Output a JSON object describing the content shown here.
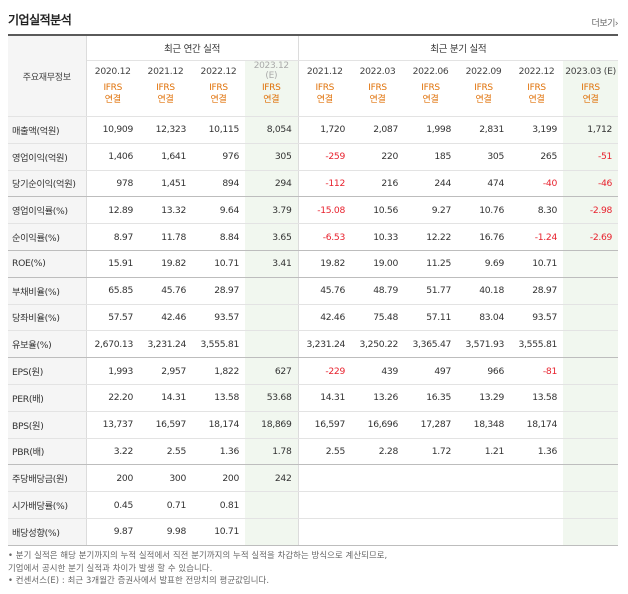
{
  "title": "기업실적분석",
  "more_link": "더보기",
  "row_header": "주요재무정보",
  "groups": {
    "annual": "최근 연간 실적",
    "quarterly": "최근 분기 실적"
  },
  "columns": [
    {
      "period": "2020.12",
      "std": "IFRS",
      "basis": "연결"
    },
    {
      "period": "2021.12",
      "std": "IFRS",
      "basis": "연결"
    },
    {
      "period": "2022.12",
      "std": "IFRS",
      "basis": "연결"
    },
    {
      "period": "2023.12",
      "est": "(E)",
      "std": "IFRS",
      "basis": "연결"
    },
    {
      "period": "2021.12",
      "std": "IFRS",
      "basis": "연결"
    },
    {
      "period": "2022.03",
      "std": "IFRS",
      "basis": "연결"
    },
    {
      "period": "2022.06",
      "std": "IFRS",
      "basis": "연결"
    },
    {
      "period": "2022.09",
      "std": "IFRS",
      "basis": "연결"
    },
    {
      "period": "2022.12",
      "std": "IFRS",
      "basis": "연결"
    },
    {
      "period": "2023.03 (E)",
      "std": "IFRS",
      "basis": "연결"
    }
  ],
  "rows": [
    {
      "label": "매출액(억원)",
      "values": [
        "10,909",
        "12,323",
        "10,115",
        "8,054",
        "1,720",
        "2,087",
        "1,998",
        "2,831",
        "3,199",
        "1,712"
      ]
    },
    {
      "label": "영업이익(억원)",
      "values": [
        "1,406",
        "1,641",
        "976",
        "305",
        "-259",
        "220",
        "185",
        "305",
        "265",
        "-51"
      ]
    },
    {
      "label": "당기순이익(억원)",
      "values": [
        "978",
        "1,451",
        "894",
        "294",
        "-112",
        "216",
        "244",
        "474",
        "-40",
        "-46"
      ]
    },
    {
      "label": "영업이익률(%)",
      "values": [
        "12.89",
        "13.32",
        "9.64",
        "3.79",
        "-15.08",
        "10.56",
        "9.27",
        "10.76",
        "8.30",
        "-2.98"
      ]
    },
    {
      "label": "순이익률(%)",
      "values": [
        "8.97",
        "11.78",
        "8.84",
        "3.65",
        "-6.53",
        "10.33",
        "12.22",
        "16.76",
        "-1.24",
        "-2.69"
      ]
    },
    {
      "label": "ROE(%)",
      "values": [
        "15.91",
        "19.82",
        "10.71",
        "3.41",
        "19.82",
        "19.00",
        "11.25",
        "9.69",
        "10.71",
        ""
      ]
    },
    {
      "label": "부채비율(%)",
      "values": [
        "65.85",
        "45.76",
        "28.97",
        "",
        "45.76",
        "48.79",
        "51.77",
        "40.18",
        "28.97",
        ""
      ]
    },
    {
      "label": "당좌비율(%)",
      "values": [
        "57.57",
        "42.46",
        "93.57",
        "",
        "42.46",
        "75.48",
        "57.11",
        "83.04",
        "93.57",
        ""
      ]
    },
    {
      "label": "유보율(%)",
      "values": [
        "2,670.13",
        "3,231.24",
        "3,555.81",
        "",
        "3,231.24",
        "3,250.22",
        "3,365.47",
        "3,571.93",
        "3,555.81",
        ""
      ]
    },
    {
      "label": "EPS(원)",
      "values": [
        "1,993",
        "2,957",
        "1,822",
        "627",
        "-229",
        "439",
        "497",
        "966",
        "-81",
        ""
      ]
    },
    {
      "label": "PER(배)",
      "values": [
        "22.20",
        "14.31",
        "13.58",
        "53.68",
        "14.31",
        "13.26",
        "16.35",
        "13.29",
        "13.58",
        ""
      ]
    },
    {
      "label": "BPS(원)",
      "values": [
        "13,737",
        "16,597",
        "18,174",
        "18,869",
        "16,597",
        "16,696",
        "17,287",
        "18,348",
        "18,174",
        ""
      ]
    },
    {
      "label": "PBR(배)",
      "values": [
        "3.22",
        "2.55",
        "1.36",
        "1.78",
        "2.55",
        "2.28",
        "1.72",
        "1.21",
        "1.36",
        ""
      ]
    },
    {
      "label": "주당배당금(원)",
      "values": [
        "200",
        "300",
        "200",
        "242",
        "",
        "",
        "",
        "",
        "",
        ""
      ]
    },
    {
      "label": "시가배당률(%)",
      "values": [
        "0.45",
        "0.71",
        "0.81",
        "",
        "",
        "",
        "",
        "",
        "",
        ""
      ]
    },
    {
      "label": "배당성향(%)",
      "values": [
        "9.87",
        "9.98",
        "10.71",
        "",
        "",
        "",
        "",
        "",
        "",
        ""
      ]
    }
  ],
  "notes": [
    "• 분기 실적은 해당 분기까지의 누적 실적에서 직전 분기까지의 누적 실적을 차감하는 방식으로 계산되므로,",
    "   기업에서 공시한 분기 실적과 차이가 발생 할 수 있습니다.",
    "• 컨센서스(E) : 최근 3개월간 증권사에서 발표한 전망치의 평균값입니다."
  ],
  "colors": {
    "negative": "#e8222e",
    "ifrs": "#e0720a",
    "estimate_bg": "#f1f7ef"
  }
}
